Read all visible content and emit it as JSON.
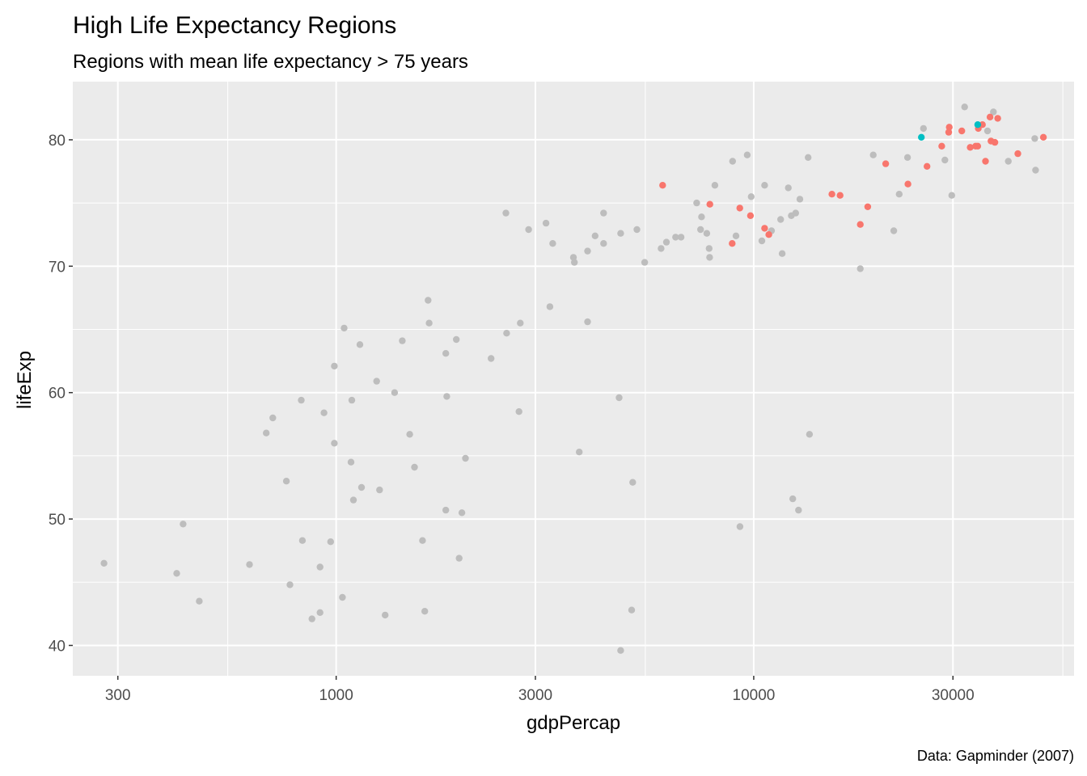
{
  "chart_data": {
    "type": "scatter",
    "title": "High Life Expectancy Regions",
    "subtitle": "Regions with mean life expectancy > 75 years",
    "caption": "Data: Gapminder (2007)",
    "xlabel": "gdpPercap",
    "ylabel": "lifeExp",
    "x_scale": "log10",
    "xlim": [
      234,
      58500
    ],
    "ylim": [
      37.6,
      84.6
    ],
    "x_ticks": [
      300,
      1000,
      3000,
      10000,
      30000
    ],
    "x_tick_labels": [
      "300",
      "1000",
      "3000",
      "10000",
      "30000"
    ],
    "x_minor_ticks": [
      550,
      5500,
      55000
    ],
    "y_ticks": [
      40,
      50,
      60,
      70,
      80
    ],
    "y_tick_labels": [
      "40",
      "50",
      "60",
      "70",
      "80"
    ],
    "y_minor_ticks": [
      45,
      55,
      65,
      75
    ],
    "grid": true,
    "legend": "none",
    "colors": {
      "panel": "#ebebeb",
      "grid": "#ffffff",
      "other": "#bdbdbd",
      "highlight_red": "#f8766d",
      "highlight_cyan": "#00bfc4"
    },
    "series": [
      {
        "color": "#bdbdbd",
        "points": [
          [
            278,
            46.5
          ],
          [
            415,
            45.7
          ],
          [
            430,
            49.6
          ],
          [
            470,
            43.5
          ],
          [
            620,
            46.4
          ],
          [
            680,
            56.8
          ],
          [
            705,
            58.0
          ],
          [
            760,
            53.0
          ],
          [
            775,
            44.8
          ],
          [
            825,
            59.4
          ],
          [
            830,
            48.3
          ],
          [
            875,
            42.1
          ],
          [
            915,
            46.2
          ],
          [
            915,
            42.6
          ],
          [
            935,
            58.4
          ],
          [
            970,
            48.2
          ],
          [
            990,
            56.0
          ],
          [
            990,
            62.1
          ],
          [
            1035,
            43.8
          ],
          [
            1045,
            65.1
          ],
          [
            1085,
            54.5
          ],
          [
            1090,
            59.4
          ],
          [
            1100,
            51.5
          ],
          [
            1140,
            63.8
          ],
          [
            1150,
            52.5
          ],
          [
            1250,
            60.9
          ],
          [
            1270,
            52.3
          ],
          [
            1310,
            42.4
          ],
          [
            1380,
            60.0
          ],
          [
            1440,
            64.1
          ],
          [
            1500,
            56.7
          ],
          [
            1540,
            54.1
          ],
          [
            1610,
            48.3
          ],
          [
            1630,
            42.7
          ],
          [
            1660,
            67.3
          ],
          [
            1670,
            65.5
          ],
          [
            1830,
            63.1
          ],
          [
            1840,
            59.7
          ],
          [
            1830,
            50.7
          ],
          [
            1940,
            64.2
          ],
          [
            2040,
            54.8
          ],
          [
            2000,
            50.5
          ],
          [
            1970,
            46.9
          ],
          [
            2350,
            62.7
          ],
          [
            2560,
            64.7
          ],
          [
            2550,
            74.2
          ],
          [
            2740,
            58.5
          ],
          [
            2760,
            65.5
          ],
          [
            2890,
            72.9
          ],
          [
            3180,
            73.4
          ],
          [
            3250,
            66.8
          ],
          [
            3300,
            71.8
          ],
          [
            3700,
            70.7
          ],
          [
            3720,
            70.3
          ],
          [
            3820,
            55.3
          ],
          [
            4000,
            65.6
          ],
          [
            4000,
            71.2
          ],
          [
            4170,
            72.4
          ],
          [
            4370,
            71.8
          ],
          [
            4370,
            74.2
          ],
          [
            4760,
            59.6
          ],
          [
            4800,
            72.6
          ],
          [
            4800,
            39.6
          ],
          [
            5100,
            42.8
          ],
          [
            5130,
            52.9
          ],
          [
            5250,
            72.9
          ],
          [
            5480,
            70.3
          ],
          [
            6000,
            71.4
          ],
          [
            6180,
            71.9
          ],
          [
            6500,
            72.3
          ],
          [
            6700,
            72.3
          ],
          [
            7300,
            75.0
          ],
          [
            7460,
            72.9
          ],
          [
            7500,
            73.9
          ],
          [
            7720,
            72.6
          ],
          [
            7820,
            71.4
          ],
          [
            7840,
            70.7
          ],
          [
            8070,
            76.4
          ],
          [
            8900,
            78.3
          ],
          [
            9070,
            72.4
          ],
          [
            9270,
            49.4
          ],
          [
            9650,
            78.8
          ],
          [
            9860,
            75.5
          ],
          [
            10460,
            72.0
          ],
          [
            10620,
            76.4
          ],
          [
            11030,
            72.8
          ],
          [
            11600,
            73.7
          ],
          [
            11700,
            71.0
          ],
          [
            12100,
            76.2
          ],
          [
            12300,
            74.0
          ],
          [
            12400,
            51.6
          ],
          [
            12600,
            74.2
          ],
          [
            12800,
            50.7
          ],
          [
            12900,
            75.3
          ],
          [
            13500,
            78.6
          ],
          [
            13600,
            56.7
          ],
          [
            18000,
            69.8
          ],
          [
            19330,
            78.8
          ],
          [
            21650,
            72.8
          ],
          [
            22300,
            75.7
          ],
          [
            23350,
            78.6
          ],
          [
            25500,
            80.9
          ],
          [
            28700,
            78.4
          ],
          [
            29800,
            75.6
          ],
          [
            32000,
            82.6
          ],
          [
            36300,
            80.7
          ],
          [
            37500,
            82.2
          ],
          [
            40700,
            78.3
          ],
          [
            47100,
            80.1
          ],
          [
            47300,
            77.6
          ]
        ]
      },
      {
        "color": "#f8766d",
        "points": [
          [
            6050,
            76.4
          ],
          [
            7850,
            74.9
          ],
          [
            8880,
            71.8
          ],
          [
            9260,
            74.6
          ],
          [
            9820,
            74.0
          ],
          [
            10620,
            73.0
          ],
          [
            10870,
            72.5
          ],
          [
            15390,
            75.7
          ],
          [
            16100,
            75.6
          ],
          [
            18000,
            73.3
          ],
          [
            18750,
            74.7
          ],
          [
            20700,
            78.1
          ],
          [
            23400,
            76.5
          ],
          [
            26000,
            77.9
          ],
          [
            28200,
            79.5
          ],
          [
            29300,
            80.6
          ],
          [
            29400,
            81.0
          ],
          [
            31500,
            80.7
          ],
          [
            33000,
            79.4
          ],
          [
            34000,
            79.5
          ],
          [
            34400,
            79.5
          ],
          [
            34500,
            80.9
          ],
          [
            35300,
            81.2
          ],
          [
            35900,
            78.3
          ],
          [
            36800,
            81.8
          ],
          [
            37000,
            79.9
          ],
          [
            37800,
            79.8
          ],
          [
            38400,
            81.7
          ],
          [
            42900,
            78.9
          ],
          [
            49400,
            80.2
          ]
        ]
      },
      {
        "color": "#00bfc4",
        "points": [
          [
            25200,
            80.2
          ],
          [
            34400,
            81.2
          ]
        ]
      }
    ]
  }
}
